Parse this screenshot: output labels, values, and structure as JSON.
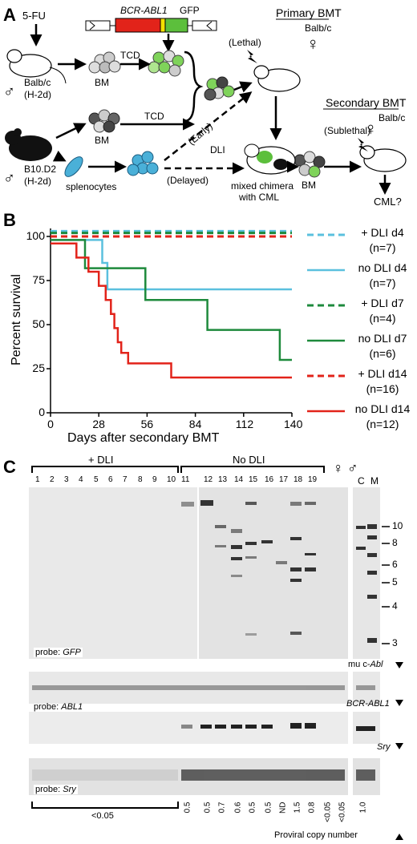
{
  "panelA": {
    "label": "A",
    "fu": "5-FU",
    "construct_gene": "BCR-ABL1",
    "construct_gfp": "GFP",
    "primary_title": "Primary BMT",
    "primary_strain": "Balb/c",
    "lethal": "(Lethal)",
    "donor1_strain": "Balb/c",
    "donor1_hla": "(H-2d)",
    "bm1": "BM",
    "tcd1": "TCD",
    "bm2": "BM",
    "tcd2": "TCD",
    "early": "(Early)",
    "dli": "DLI",
    "delayed": "(Delayed)",
    "donor2_strain": "B10.D2",
    "donor2_hla": "(H-2d)",
    "splenocytes": "splenocytes",
    "chimera1": "mixed chimera",
    "chimera2": "with CML",
    "bm3": "BM",
    "secondary_title": "Secondary BMT",
    "secondary_strain": "Balb/c",
    "sublethal": "(Sublethal)",
    "cml_q": "CML?"
  },
  "panelB": {
    "label": "B",
    "colors": {
      "cyan": "#5bc0de",
      "green": "#1e8a3c",
      "red": "#e2231a"
    },
    "legend": [
      {
        "line": "dashed",
        "color": "#5bc0de",
        "name": "+ DLI d4",
        "n": "(n=7)"
      },
      {
        "line": "solid",
        "color": "#5bc0de",
        "name": "no DLI d4",
        "n": "(n=7)"
      },
      {
        "line": "dashed",
        "color": "#1e8a3c",
        "name": "+ DLI d7",
        "n": "(n=4)"
      },
      {
        "line": "solid",
        "color": "#1e8a3c",
        "name": "no DLI d7",
        "n": "(n=6)"
      },
      {
        "line": "dashed",
        "color": "#e2231a",
        "name": "+ DLI d14",
        "n": "(n=16)"
      },
      {
        "line": "solid",
        "color": "#e2231a",
        "name": "no DLI d14",
        "n": "(n=12)"
      }
    ]
  },
  "chart_data": {
    "type": "line",
    "xlabel": "Days after secondary BMT",
    "ylabel": "Percent survival",
    "xlim": [
      0,
      140
    ],
    "ylim": [
      0,
      100
    ],
    "xticks": [
      0,
      28,
      56,
      84,
      112,
      140
    ],
    "yticks": [
      0,
      25,
      50,
      75,
      100
    ],
    "series": [
      {
        "name": "+ DLI d4",
        "color": "#5bc0de",
        "dash": true,
        "steps": [
          [
            0,
            103
          ],
          [
            140,
            103
          ]
        ]
      },
      {
        "name": "no DLI d4",
        "color": "#5bc0de",
        "dash": false,
        "steps": [
          [
            0,
            98
          ],
          [
            30,
            98
          ],
          [
            30,
            85
          ],
          [
            33,
            85
          ],
          [
            33,
            70
          ],
          [
            140,
            70
          ]
        ]
      },
      {
        "name": "+ DLI d7",
        "color": "#1e8a3c",
        "dash": true,
        "steps": [
          [
            0,
            102
          ],
          [
            140,
            102
          ]
        ]
      },
      {
        "name": "no DLI d7",
        "color": "#1e8a3c",
        "dash": false,
        "steps": [
          [
            0,
            98
          ],
          [
            20,
            98
          ],
          [
            20,
            82
          ],
          [
            55,
            82
          ],
          [
            55,
            64
          ],
          [
            91,
            64
          ],
          [
            91,
            47
          ],
          [
            133,
            47
          ],
          [
            133,
            30
          ],
          [
            140,
            30
          ]
        ]
      },
      {
        "name": "+ DLI d14",
        "color": "#e2231a",
        "dash": true,
        "steps": [
          [
            0,
            100
          ],
          [
            140,
            100
          ]
        ]
      },
      {
        "name": "no DLI d14",
        "color": "#e2231a",
        "dash": false,
        "steps": [
          [
            0,
            96
          ],
          [
            15,
            96
          ],
          [
            15,
            88
          ],
          [
            22,
            88
          ],
          [
            22,
            80
          ],
          [
            28,
            80
          ],
          [
            28,
            72
          ],
          [
            32,
            72
          ],
          [
            32,
            64
          ],
          [
            35,
            64
          ],
          [
            35,
            56
          ],
          [
            37,
            56
          ],
          [
            37,
            48
          ],
          [
            39,
            48
          ],
          [
            39,
            40
          ],
          [
            41,
            40
          ],
          [
            41,
            34
          ],
          [
            45,
            34
          ],
          [
            45,
            28
          ],
          [
            70,
            28
          ],
          [
            70,
            20
          ],
          [
            140,
            20
          ]
        ]
      }
    ]
  },
  "panelC": {
    "label": "C",
    "plus_dli": "+ DLI",
    "no_dli": "No DLI",
    "lanes": [
      "1",
      "2",
      "3",
      "4",
      "5",
      "6",
      "7",
      "8",
      "9",
      "10",
      "11",
      "12",
      "13",
      "14",
      "15",
      "16",
      "17",
      "18",
      "19"
    ],
    "female": "♀",
    "male": "♂",
    "c": "C",
    "m": "M",
    "markers": [
      "10",
      "8",
      "6",
      "5",
      "4",
      "3"
    ],
    "probe_gfp": "probe: GFP",
    "mu_cabl": "mu c-Abl",
    "probe_abl1": "probe: ABL1",
    "bcr_abl1": "BCR-ABL1",
    "sry": "Sry",
    "probe_sry": "probe: Sry",
    "low": "<0.05",
    "copy_numbers": [
      "0.5",
      "0.5",
      "0.7",
      "0.6",
      "0.5",
      "0.5",
      "ND",
      "1.5",
      "0.8",
      "<0.05",
      "<0.05",
      "1.0"
    ],
    "proviral": "Proviral copy number"
  }
}
